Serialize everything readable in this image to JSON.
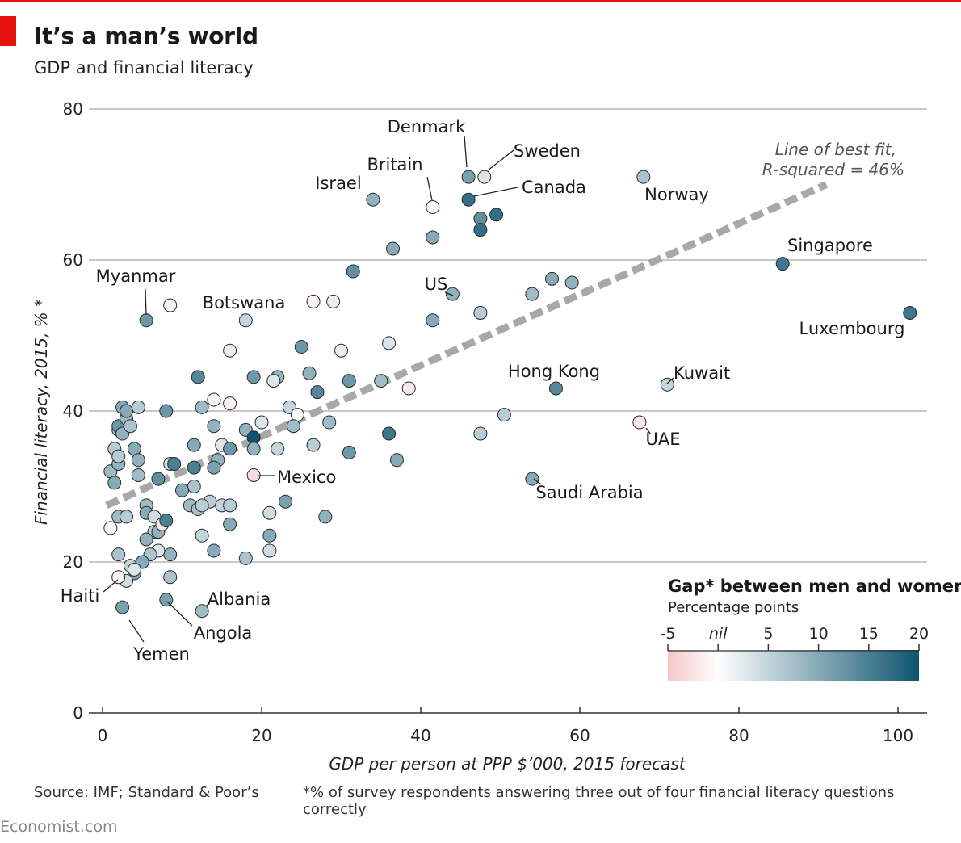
{
  "header": {
    "title": "It’s a man’s world",
    "subtitle": "GDP and financial literacy"
  },
  "footer": {
    "source": "Source: IMF; Standard & Poor’s",
    "note": "*% of survey respondents answering three out of four financial literacy questions correctly",
    "brand": "Economist.com"
  },
  "colors": {
    "accent": "#e3120b",
    "grid": "#c8c8c8",
    "fit_line": "#a8a8aa",
    "gap_low": "#f4c7c9",
    "gap_nil": "#ffffff",
    "gap_high": "#0e5470"
  },
  "chart_data": {
    "type": "scatter",
    "title": "It’s a man’s world",
    "subtitle": "GDP and financial literacy",
    "xlabel": "GDP per person at PPP $’000, 2015 forecast",
    "ylabel": "Financial literacy, 2015, % *",
    "xlim": [
      0,
      104
    ],
    "ylim": [
      0,
      80
    ],
    "x_ticks": [
      0,
      20,
      40,
      60,
      80,
      100
    ],
    "y_ticks": [
      0,
      20,
      40,
      60,
      80
    ],
    "grid": "horizontal",
    "fit_line": {
      "label_line1": "Line of best fit,",
      "label_line2": "R-squared = 46%",
      "from": [
        0.5,
        27.5
      ],
      "to": [
        91,
        70
      ]
    },
    "legend": {
      "title": "Gap* between men and women",
      "subtitle": "Percentage points",
      "placement": "bottom-right",
      "range": [
        -5,
        20
      ],
      "ticks": [
        {
          "value": -5,
          "label": "-5"
        },
        {
          "value": 0,
          "label": "nil"
        },
        {
          "value": 5,
          "label": "5"
        },
        {
          "value": 10,
          "label": "10"
        },
        {
          "value": 15,
          "label": "15"
        },
        {
          "value": 20,
          "label": "20"
        }
      ]
    },
    "labeled_points": [
      {
        "name": "Denmark",
        "x": 46,
        "y": 71,
        "gap": 11
      },
      {
        "name": "Sweden",
        "x": 48,
        "y": 71,
        "gap": 3
      },
      {
        "name": "Canada",
        "x": 46,
        "y": 68,
        "gap": 17
      },
      {
        "name": "Britain",
        "x": 41.5,
        "y": 67,
        "gap": -1
      },
      {
        "name": "Israel",
        "x": 34,
        "y": 68,
        "gap": 9
      },
      {
        "name": "Norway",
        "x": 68,
        "y": 71,
        "gap": 7
      },
      {
        "name": "Singapore",
        "x": 85.5,
        "y": 59.5,
        "gap": 16
      },
      {
        "name": "Luxembourg",
        "x": 101.5,
        "y": 53,
        "gap": 16
      },
      {
        "name": "Myanmar",
        "x": 5.5,
        "y": 52,
        "gap": 12
      },
      {
        "name": "Botswana",
        "x": 18,
        "y": 52,
        "gap": 5
      },
      {
        "name": "US",
        "x": 44,
        "y": 55.5,
        "gap": 9
      },
      {
        "name": "Hong Kong",
        "x": 57,
        "y": 43,
        "gap": 14
      },
      {
        "name": "Kuwait",
        "x": 71,
        "y": 43.5,
        "gap": 5
      },
      {
        "name": "UAE",
        "x": 67.5,
        "y": 38.5,
        "gap": -2
      },
      {
        "name": "Saudi Arabia",
        "x": 54,
        "y": 31,
        "gap": 10
      },
      {
        "name": "Mexico",
        "x": 19,
        "y": 31.5,
        "gap": -3
      },
      {
        "name": "Haiti",
        "x": 2,
        "y": 18,
        "gap": -1
      },
      {
        "name": "Albania",
        "x": 12.5,
        "y": 13.5,
        "gap": 8
      },
      {
        "name": "Angola",
        "x": 8,
        "y": 15,
        "gap": 11
      },
      {
        "name": "Yemen",
        "x": 2.5,
        "y": 14,
        "gap": 11
      }
    ],
    "other_points": [
      {
        "x": 8.5,
        "y": 54,
        "gap": -1
      },
      {
        "x": 26.5,
        "y": 54.5,
        "gap": -1
      },
      {
        "x": 29,
        "y": 54.5,
        "gap": 2
      },
      {
        "x": 31.5,
        "y": 58.5,
        "gap": 13
      },
      {
        "x": 36.5,
        "y": 61.5,
        "gap": 10
      },
      {
        "x": 41.5,
        "y": 63,
        "gap": 10
      },
      {
        "x": 47.5,
        "y": 65.5,
        "gap": 13
      },
      {
        "x": 49.5,
        "y": 66,
        "gap": 17
      },
      {
        "x": 47.5,
        "y": 64,
        "gap": 17
      },
      {
        "x": 56.5,
        "y": 57.5,
        "gap": 10
      },
      {
        "x": 59,
        "y": 57,
        "gap": 9
      },
      {
        "x": 54,
        "y": 55.5,
        "gap": 8
      },
      {
        "x": 47.5,
        "y": 53,
        "gap": 6
      },
      {
        "x": 41.5,
        "y": 52,
        "gap": 10
      },
      {
        "x": 36,
        "y": 49,
        "gap": 3
      },
      {
        "x": 16,
        "y": 48,
        "gap": 2
      },
      {
        "x": 25,
        "y": 48.5,
        "gap": 12
      },
      {
        "x": 30,
        "y": 48,
        "gap": 2
      },
      {
        "x": 12,
        "y": 44.5,
        "gap": 14
      },
      {
        "x": 19,
        "y": 44.5,
        "gap": 12
      },
      {
        "x": 22,
        "y": 44.5,
        "gap": 9
      },
      {
        "x": 26,
        "y": 45,
        "gap": 9
      },
      {
        "x": 21.5,
        "y": 44,
        "gap": 3
      },
      {
        "x": 31,
        "y": 44,
        "gap": 12
      },
      {
        "x": 35,
        "y": 44,
        "gap": 8
      },
      {
        "x": 27,
        "y": 42.5,
        "gap": 14
      },
      {
        "x": 38.5,
        "y": 43,
        "gap": -2
      },
      {
        "x": 14,
        "y": 41.5,
        "gap": -1
      },
      {
        "x": 16,
        "y": 41,
        "gap": -1
      },
      {
        "x": 12.5,
        "y": 40.5,
        "gap": 8
      },
      {
        "x": 8,
        "y": 40,
        "gap": 12
      },
      {
        "x": 23.5,
        "y": 40.5,
        "gap": 5
      },
      {
        "x": 24.5,
        "y": 39.5,
        "gap": 0
      },
      {
        "x": 20,
        "y": 38.5,
        "gap": 3
      },
      {
        "x": 28.5,
        "y": 38.5,
        "gap": 8
      },
      {
        "x": 14,
        "y": 38,
        "gap": 9
      },
      {
        "x": 18,
        "y": 37.5,
        "gap": 9
      },
      {
        "x": 24,
        "y": 38,
        "gap": 8
      },
      {
        "x": 36,
        "y": 37,
        "gap": 16
      },
      {
        "x": 47.5,
        "y": 37,
        "gap": 6
      },
      {
        "x": 50.5,
        "y": 39.5,
        "gap": 6
      },
      {
        "x": 19,
        "y": 36.5,
        "gap": 20
      },
      {
        "x": 26.5,
        "y": 35.5,
        "gap": 6
      },
      {
        "x": 11.5,
        "y": 35.5,
        "gap": 10
      },
      {
        "x": 15,
        "y": 35.5,
        "gap": 3
      },
      {
        "x": 16,
        "y": 35,
        "gap": 12
      },
      {
        "x": 19,
        "y": 35,
        "gap": 9
      },
      {
        "x": 22,
        "y": 35,
        "gap": 5
      },
      {
        "x": 31,
        "y": 34.5,
        "gap": 12
      },
      {
        "x": 37,
        "y": 33.5,
        "gap": 10
      },
      {
        "x": 14.5,
        "y": 33.5,
        "gap": 9
      },
      {
        "x": 14,
        "y": 32.5,
        "gap": 11
      },
      {
        "x": 8.5,
        "y": 33,
        "gap": 4
      },
      {
        "x": 9,
        "y": 33,
        "gap": 15
      },
      {
        "x": 11.5,
        "y": 32.5,
        "gap": 15
      },
      {
        "x": 11.5,
        "y": 30,
        "gap": 7
      },
      {
        "x": 7,
        "y": 31,
        "gap": 13
      },
      {
        "x": 10,
        "y": 29.5,
        "gap": 10
      },
      {
        "x": 13.5,
        "y": 28,
        "gap": 6
      },
      {
        "x": 15,
        "y": 27.5,
        "gap": 5
      },
      {
        "x": 16,
        "y": 27.5,
        "gap": 6
      },
      {
        "x": 11,
        "y": 27.5,
        "gap": 8
      },
      {
        "x": 12,
        "y": 27,
        "gap": 7
      },
      {
        "x": 12.5,
        "y": 27.5,
        "gap": 6
      },
      {
        "x": 21,
        "y": 26.5,
        "gap": 4
      },
      {
        "x": 23,
        "y": 28,
        "gap": 11
      },
      {
        "x": 28,
        "y": 26,
        "gap": 9
      },
      {
        "x": 16,
        "y": 25,
        "gap": 10
      },
      {
        "x": 12.5,
        "y": 23.5,
        "gap": 5
      },
      {
        "x": 21,
        "y": 23.5,
        "gap": 10
      },
      {
        "x": 21,
        "y": 21.5,
        "gap": 4
      },
      {
        "x": 18,
        "y": 20.5,
        "gap": 7
      },
      {
        "x": 14,
        "y": 21.5,
        "gap": 10
      },
      {
        "x": 8.5,
        "y": 21,
        "gap": 9
      },
      {
        "x": 8.5,
        "y": 18,
        "gap": 7
      },
      {
        "x": 1,
        "y": 24.5,
        "gap": -1
      },
      {
        "x": 1,
        "y": 32,
        "gap": 8
      },
      {
        "x": 1.5,
        "y": 35,
        "gap": 6
      },
      {
        "x": 1.5,
        "y": 30.5,
        "gap": 10
      },
      {
        "x": 2,
        "y": 33,
        "gap": 9
      },
      {
        "x": 2,
        "y": 34,
        "gap": 6
      },
      {
        "x": 2,
        "y": 37.5,
        "gap": 8
      },
      {
        "x": 2,
        "y": 38,
        "gap": 12
      },
      {
        "x": 2.5,
        "y": 37,
        "gap": 9
      },
      {
        "x": 2.5,
        "y": 40.5,
        "gap": 10
      },
      {
        "x": 3,
        "y": 39,
        "gap": 8
      },
      {
        "x": 3,
        "y": 40,
        "gap": 10
      },
      {
        "x": 3.5,
        "y": 38,
        "gap": 7
      },
      {
        "x": 4,
        "y": 35,
        "gap": 10
      },
      {
        "x": 4.5,
        "y": 40.5,
        "gap": 6
      },
      {
        "x": 4.5,
        "y": 33.5,
        "gap": 9
      },
      {
        "x": 4.5,
        "y": 31.5,
        "gap": 8
      },
      {
        "x": 2,
        "y": 26,
        "gap": 8
      },
      {
        "x": 3,
        "y": 26,
        "gap": 6
      },
      {
        "x": 5.5,
        "y": 27.5,
        "gap": 8
      },
      {
        "x": 5.5,
        "y": 26.5,
        "gap": 10
      },
      {
        "x": 6.5,
        "y": 26,
        "gap": 4
      },
      {
        "x": 6.5,
        "y": 24,
        "gap": 6
      },
      {
        "x": 7,
        "y": 24,
        "gap": 9
      },
      {
        "x": 7.5,
        "y": 25,
        "gap": -2
      },
      {
        "x": 8,
        "y": 25.5,
        "gap": 15
      },
      {
        "x": 5.5,
        "y": 23,
        "gap": 9
      },
      {
        "x": 7,
        "y": 21.5,
        "gap": 3
      },
      {
        "x": 6,
        "y": 21,
        "gap": 7
      },
      {
        "x": 5,
        "y": 20,
        "gap": 10
      },
      {
        "x": 2,
        "y": 21,
        "gap": 7
      },
      {
        "x": 3.5,
        "y": 19.5,
        "gap": 5
      },
      {
        "x": 4,
        "y": 18.5,
        "gap": 10
      },
      {
        "x": 3,
        "y": 17.5,
        "gap": 4
      },
      {
        "x": 4,
        "y": 19,
        "gap": 3
      }
    ]
  }
}
